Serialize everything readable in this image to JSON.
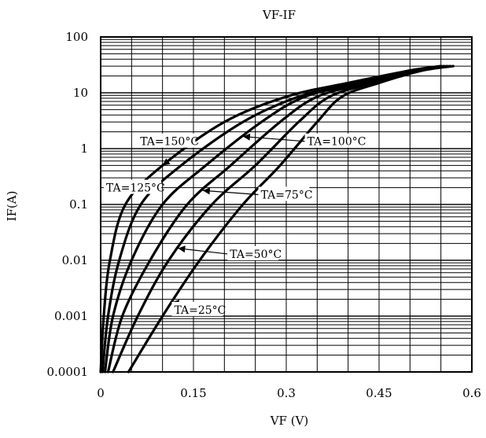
{
  "chart_data": {
    "type": "line",
    "title": "VF-IF",
    "xlabel": "VF (V)",
    "ylabel": "IF(A)",
    "xlim": [
      0,
      0.6
    ],
    "ylim": [
      0.0001,
      100
    ],
    "yscale": "log",
    "grid": true,
    "x_ticks": [
      "0",
      "0.15",
      "0.3",
      "0.45",
      "0.6"
    ],
    "y_ticks": [
      "0.0001",
      "0.001",
      "0.01",
      "0.1",
      "1",
      "10",
      "100"
    ],
    "series": [
      {
        "name": "TA=150°C",
        "points": [
          [
            0.0,
            0.0001
          ],
          [
            0.005,
            0.001
          ],
          [
            0.015,
            0.01
          ],
          [
            0.04,
            0.1
          ],
          [
            0.1,
            0.5
          ],
          [
            0.2,
            3.0
          ],
          [
            0.3,
            8.5
          ],
          [
            0.4,
            15
          ],
          [
            0.5,
            25
          ],
          [
            0.55,
            30
          ]
        ]
      },
      {
        "name": "TA=125°C",
        "points": [
          [
            0.003,
            0.0001
          ],
          [
            0.012,
            0.001
          ],
          [
            0.03,
            0.01
          ],
          [
            0.065,
            0.1
          ],
          [
            0.13,
            0.5
          ],
          [
            0.23,
            3.0
          ],
          [
            0.32,
            8.5
          ],
          [
            0.41,
            15
          ],
          [
            0.5,
            25
          ],
          [
            0.55,
            30
          ]
        ]
      },
      {
        "name": "TA=100°C",
        "points": [
          [
            0.007,
            0.0001
          ],
          [
            0.02,
            0.001
          ],
          [
            0.05,
            0.01
          ],
          [
            0.1,
            0.1
          ],
          [
            0.17,
            0.5
          ],
          [
            0.26,
            3.0
          ],
          [
            0.33,
            8.5
          ],
          [
            0.42,
            15
          ],
          [
            0.5,
            25
          ],
          [
            0.555,
            30
          ]
        ]
      },
      {
        "name": "TA=75°C",
        "points": [
          [
            0.012,
            0.0001
          ],
          [
            0.035,
            0.001
          ],
          [
            0.08,
            0.01
          ],
          [
            0.14,
            0.1
          ],
          [
            0.21,
            0.5
          ],
          [
            0.29,
            3.0
          ],
          [
            0.35,
            8.5
          ],
          [
            0.43,
            15
          ],
          [
            0.51,
            25
          ],
          [
            0.56,
            30
          ]
        ]
      },
      {
        "name": "TA=50°C",
        "points": [
          [
            0.02,
            0.0001
          ],
          [
            0.06,
            0.001
          ],
          [
            0.11,
            0.01
          ],
          [
            0.18,
            0.1
          ],
          [
            0.25,
            0.5
          ],
          [
            0.32,
            3.0
          ],
          [
            0.37,
            8.5
          ],
          [
            0.44,
            15
          ],
          [
            0.51,
            25
          ],
          [
            0.565,
            30
          ]
        ]
      },
      {
        "name": "TA=25°C",
        "points": [
          [
            0.045,
            0.0001
          ],
          [
            0.1,
            0.001
          ],
          [
            0.16,
            0.01
          ],
          [
            0.23,
            0.1
          ],
          [
            0.29,
            0.5
          ],
          [
            0.35,
            3.0
          ],
          [
            0.39,
            8.5
          ],
          [
            0.45,
            15
          ],
          [
            0.52,
            25
          ],
          [
            0.57,
            30
          ]
        ]
      }
    ],
    "annotations": [
      {
        "label": "TA=150°C",
        "series": "TA=150°C",
        "x": 0.06,
        "y": 1.35
      },
      {
        "label": "TA=125°C",
        "series": "TA=125°C",
        "x": 0.005,
        "y": 0.2
      },
      {
        "label": "TA=100°C",
        "series": "TA=100°C",
        "x": 0.33,
        "y": 1.35
      },
      {
        "label": "TA=75°C",
        "series": "TA=75°C",
        "x": 0.255,
        "y": 0.15
      },
      {
        "label": "TA=50°C",
        "series": "TA=50°C",
        "x": 0.205,
        "y": 0.013
      },
      {
        "label": "TA=25°C",
        "series": "TA=25°C",
        "x": 0.115,
        "y": 0.0013
      }
    ]
  }
}
